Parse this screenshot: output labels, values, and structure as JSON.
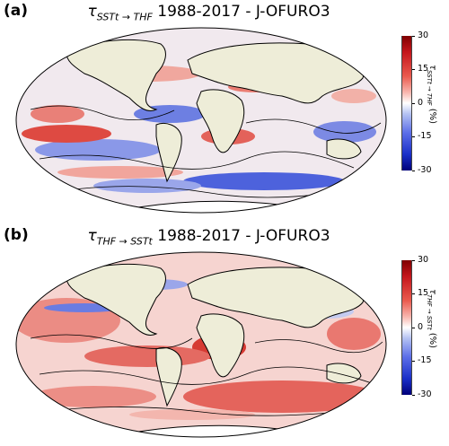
{
  "panels": [
    {
      "letter": "(a)",
      "tau": "τ",
      "sub": "SSTt → THF",
      "title_rest": "1988-2017 - J-OFURO3",
      "colorbar_label_tau": "τ",
      "colorbar_label_sub": "SSTt → THF",
      "colorbar_label_unit": "(%)",
      "ticks": [
        "30",
        "15",
        "0",
        "-15",
        "-30"
      ],
      "map_description_colors": {
        "positive": "#d7302f",
        "negative": "#3b56d6",
        "land": "#eeedd8"
      }
    },
    {
      "letter": "(b)",
      "tau": "τ",
      "sub": "THF → SSTt",
      "title_rest": "1988-2017 - J-OFURO3",
      "colorbar_label_tau": "τ",
      "colorbar_label_sub": "THF → SSTt",
      "colorbar_label_unit": "(%)",
      "ticks": [
        "30",
        "15",
        "0",
        "-15",
        "-30"
      ],
      "map_description_colors": {
        "positive": "#d7302f",
        "negative": "#3b56d6",
        "land": "#eeedd8"
      }
    }
  ]
}
